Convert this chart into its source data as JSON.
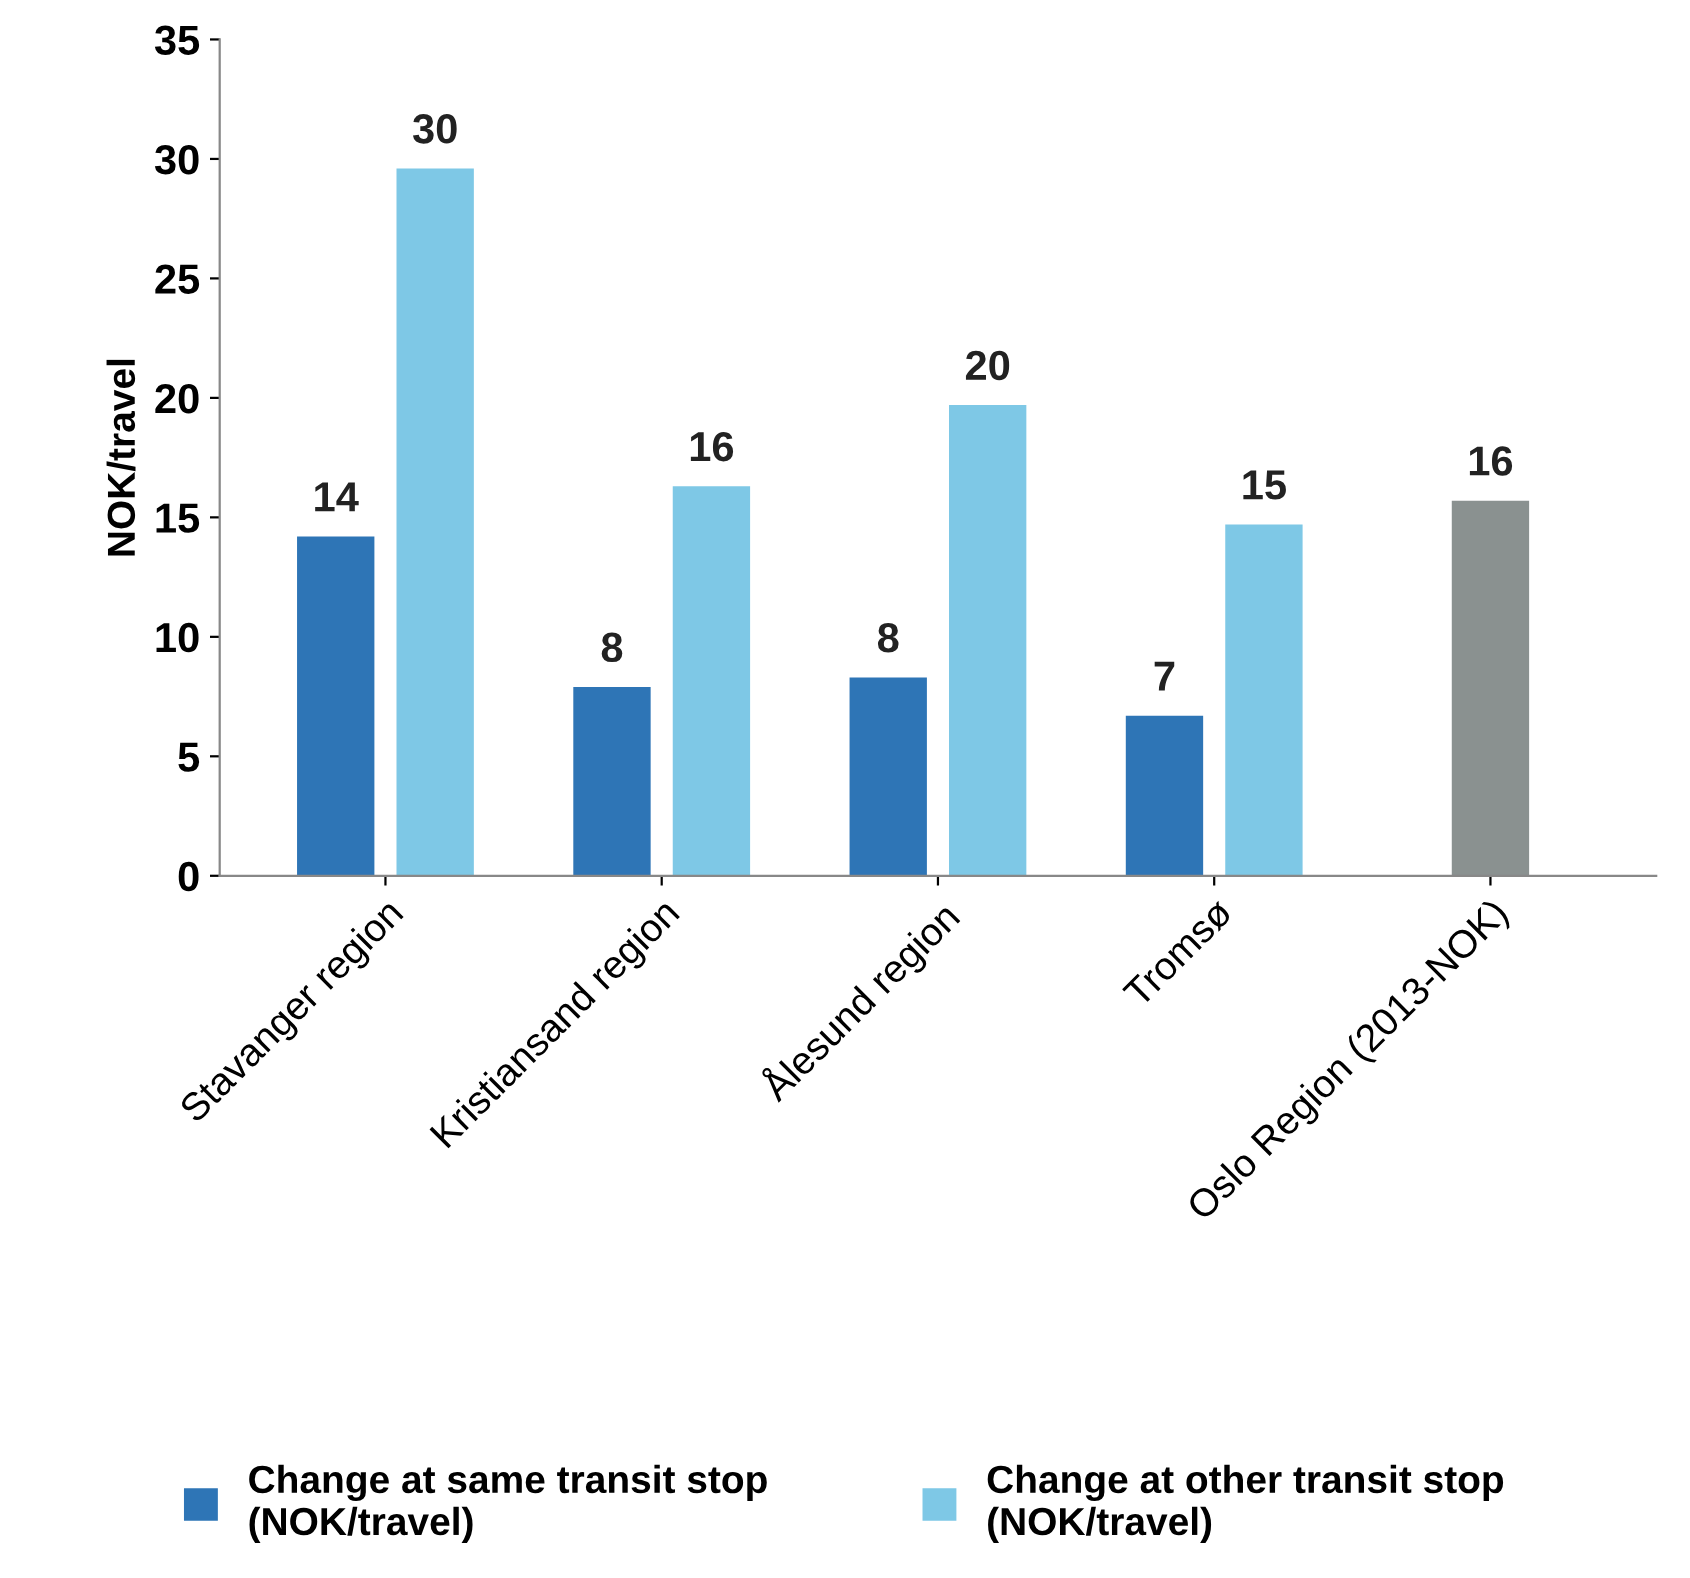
{
  "chart_data": {
    "type": "bar",
    "ylabel": "NOK/travel",
    "categories": [
      "Stavanger region",
      "Kristiansand region",
      "Ålesund region",
      "Tromsø",
      "Oslo Region (2013-NOK)"
    ],
    "series": [
      {
        "name": "Change at same transit stop\n(NOK/travel)",
        "color": "#2e75b6",
        "values": [
          14.2,
          7.9,
          8.3,
          6.7,
          null
        ],
        "value_labels": [
          "14",
          "8",
          "8",
          "7",
          null
        ]
      },
      {
        "name": "Change at other transit stop\n(NOK/travel)",
        "color": "#7ec8e6",
        "values": [
          29.6,
          16.3,
          19.7,
          14.7,
          null
        ],
        "value_labels": [
          "30",
          "16",
          "20",
          "15",
          null
        ]
      },
      {
        "color": "#8a9190",
        "values": [
          null,
          null,
          null,
          null,
          15.7
        ],
        "value_labels": [
          null,
          null,
          null,
          null,
          "16"
        ]
      }
    ],
    "ylim": [
      0,
      35
    ],
    "yticks": [
      0,
      5,
      10,
      15,
      20,
      25,
      30,
      35
    ],
    "legend": "bottom",
    "grid": false
  }
}
